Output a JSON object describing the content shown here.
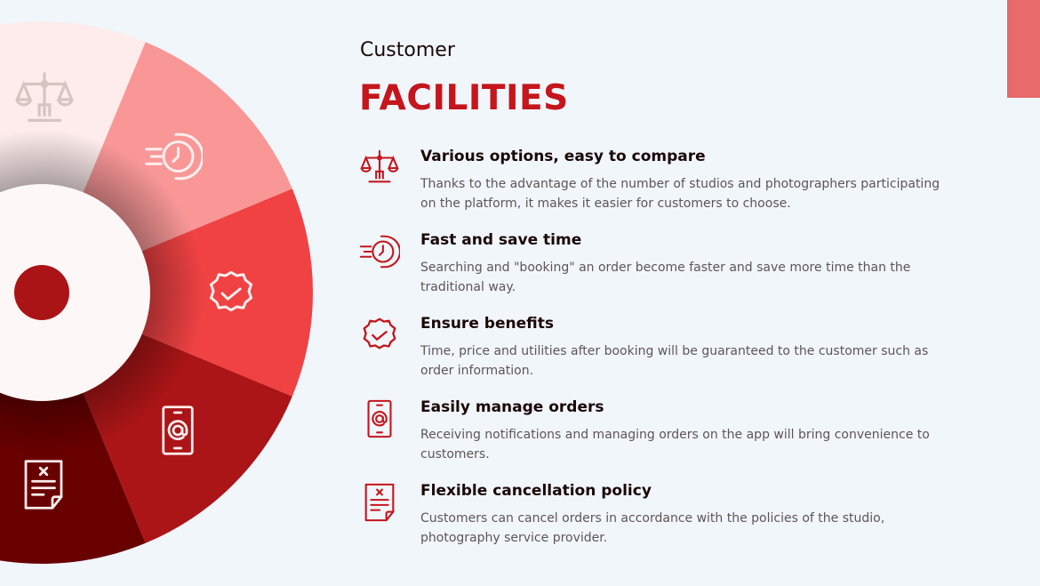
{
  "header": {
    "subtitle": "Customer",
    "title": "FACILITIES"
  },
  "colors": {
    "background": "#f1f6fb",
    "accent": "#c4161c",
    "corner": "#e96a6a",
    "segments": [
      "#fdeceb",
      "#f99797",
      "#f04243",
      "#ac1517",
      "#690000"
    ]
  },
  "wheel": {
    "icons": [
      "scale-icon",
      "fast-clock-icon",
      "verified-badge-icon",
      "phone-at-icon",
      "cancel-document-icon"
    ]
  },
  "items": [
    {
      "icon": "scale-icon",
      "title": "Various options, easy to compare",
      "text": "Thanks to the advantage of the number of studios and photographers participating on the platform, it makes it easier for customers to choose."
    },
    {
      "icon": "fast-clock-icon",
      "title": "Fast and save time",
      "text": "Searching and \"booking\" an order become faster and save more time than the traditional way."
    },
    {
      "icon": "verified-badge-icon",
      "title": "Ensure benefits",
      "text": "Time, price and utilities after booking will be guaranteed to the customer such as order information."
    },
    {
      "icon": "phone-at-icon",
      "title": "Easily manage orders",
      "text": "Receiving notifications and managing orders on the app will bring convenience to customers."
    },
    {
      "icon": "cancel-document-icon",
      "title": "Flexible cancellation policy",
      "text": "Customers can cancel orders in accordance with the policies of the studio, photography service provider."
    }
  ]
}
